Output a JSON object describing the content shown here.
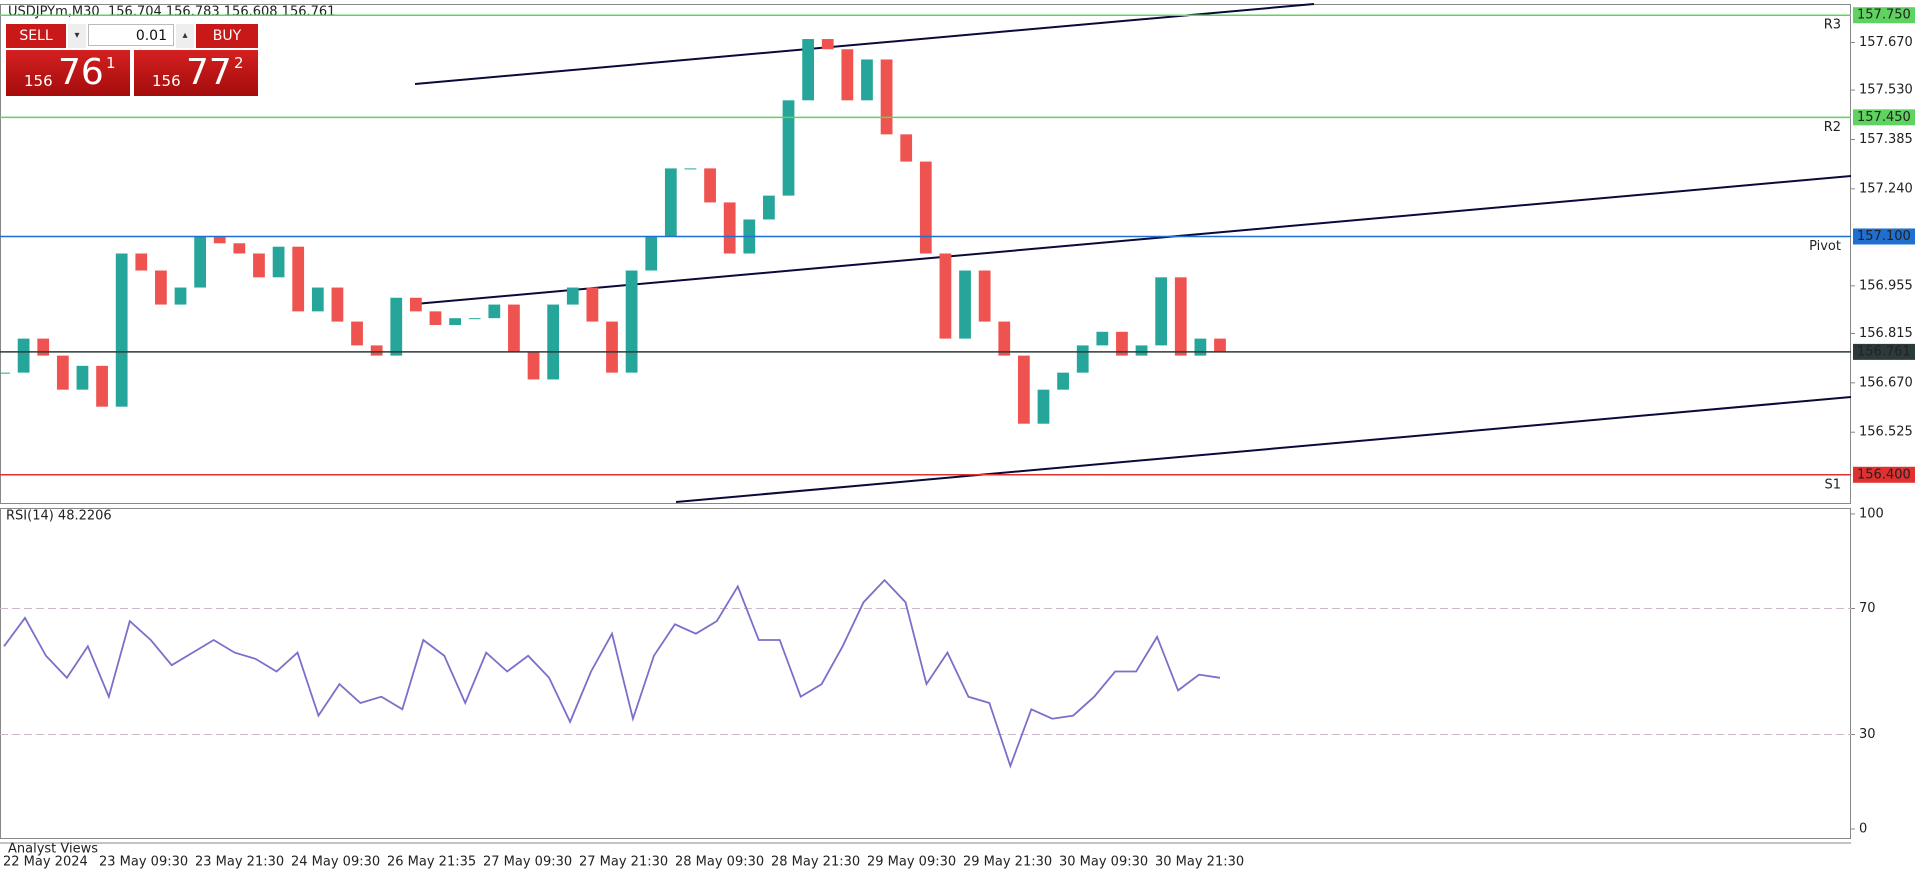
{
  "header": {
    "symbol": "USDJPYm,M30",
    "quote": "156.704 156.783 156.608 156.761"
  },
  "trade_panel": {
    "sell": "SELL",
    "buy": "BUY",
    "lot": "0.01",
    "sell_big": "156",
    "sell_pips": "76",
    "sell_frac": "1",
    "buy_big": "156",
    "buy_pips": "77",
    "buy_frac": "2"
  },
  "footer": {
    "tab": "Analyst Views"
  },
  "time_labels": [
    "22 May 2024",
    "23 May 09:30",
    "23 May 21:30",
    "24 May 09:30",
    "26 May 21:35",
    "27 May 09:30",
    "27 May 21:30",
    "28 May 09:30",
    "28 May 21:30",
    "29 May 09:30",
    "29 May 21:30",
    "30 May 09:30",
    "30 May 21:30"
  ],
  "chart_data": [
    {
      "type": "candlestick",
      "up_color": "#26a69a",
      "down_color": "#ef5350",
      "values": [
        156.7,
        156.8,
        156.75,
        156.65,
        156.72,
        156.6,
        157.05,
        157.0,
        156.9,
        156.95,
        157.1,
        157.08,
        157.05,
        156.98,
        157.07,
        156.88,
        156.95,
        156.85,
        156.78,
        156.75,
        156.92,
        156.88,
        156.84,
        156.86,
        156.86,
        156.9,
        156.76,
        156.68,
        156.9,
        156.95,
        156.85,
        156.7,
        157.0,
        157.1,
        157.3,
        157.3,
        157.2,
        157.05,
        157.15,
        157.22,
        157.5,
        157.68,
        157.65,
        157.5,
        157.62,
        157.4,
        157.32,
        157.05,
        156.8,
        157.0,
        156.85,
        156.75,
        156.55,
        156.65,
        156.7,
        156.78,
        156.82,
        156.75,
        156.78,
        156.98,
        156.75,
        156.8,
        156.76
      ],
      "ylim": [
        156.32,
        157.78
      ],
      "yticks": [
        {
          "value": 157.67,
          "label": "157.670"
        },
        {
          "value": 157.53,
          "label": "157.530"
        },
        {
          "value": 157.385,
          "label": "157.385"
        },
        {
          "value": 157.24,
          "label": "157.240"
        },
        {
          "value": 156.955,
          "label": "156.955"
        },
        {
          "value": 156.815,
          "label": "156.815"
        },
        {
          "value": 156.67,
          "label": "156.670"
        },
        {
          "value": 156.525,
          "label": "156.525"
        }
      ],
      "levels": [
        {
          "value": 157.75,
          "label": "157.750",
          "color": "#5fd35f",
          "tag": "R3"
        },
        {
          "value": 157.45,
          "label": "157.450",
          "color": "#5fd35f",
          "tag": "R2"
        },
        {
          "value": 157.1,
          "label": "157.100",
          "color": "#1e6fd0",
          "tag": "Pivot"
        },
        {
          "value": 156.761,
          "label": "156.761",
          "color": "#2d3a3a"
        },
        {
          "value": 156.4,
          "label": "156.400",
          "color": "#e03030",
          "tag": "S1"
        }
      ]
    },
    {
      "type": "line",
      "title": "RSI(14) 48.2206",
      "color": "#7b6fc9",
      "values": [
        58,
        67,
        55,
        48,
        58,
        42,
        66,
        60,
        52,
        56,
        60,
        56,
        54,
        50,
        56,
        36,
        46,
        40,
        42,
        38,
        60,
        55,
        40,
        56,
        50,
        55,
        48,
        34,
        50,
        62,
        35,
        55,
        65,
        62,
        66,
        77,
        60,
        60,
        42,
        46,
        58,
        72,
        79,
        72,
        46,
        56,
        42,
        40,
        20,
        38,
        35,
        36,
        42,
        50,
        50,
        61,
        44,
        49,
        48
      ],
      "ylim": [
        0,
        100
      ],
      "yticks": [
        100,
        70,
        30,
        0
      ]
    }
  ]
}
